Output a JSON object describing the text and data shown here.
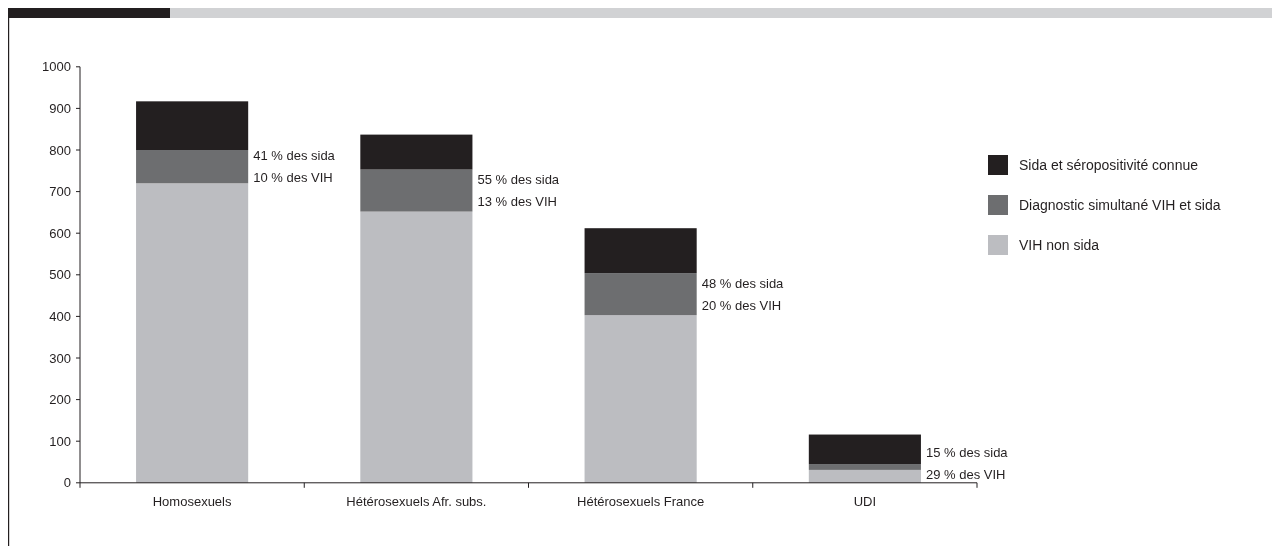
{
  "chart_data": {
    "type": "bar",
    "stacked": true,
    "categories": [
      "Homosexuels",
      "Hétérosexuels Afr. subs.",
      "Hétérosexuels France",
      "UDI"
    ],
    "series": [
      {
        "name": "VIH non sida",
        "color": "#bcbdc1",
        "values": [
          720,
          652,
          403,
          31
        ]
      },
      {
        "name": "Diagnostic simultané VIH et sida",
        "color": "#6d6e70",
        "values": [
          80,
          101,
          101,
          14
        ]
      },
      {
        "name": "Sida et séropositivité connue",
        "color": "#231f20",
        "values": [
          117,
          84,
          108,
          71
        ]
      }
    ],
    "ylim": [
      0,
      1000
    ],
    "yticks": [
      0,
      100,
      200,
      300,
      400,
      500,
      600,
      700,
      800,
      900,
      1000
    ],
    "grid": false,
    "legend": "right",
    "annotations": [
      "41 % des sida",
      "10 % des VIH",
      "55 % des sida",
      "13 % des VIH",
      "48 % des sida",
      "20 % des VIH",
      "15 % des sida",
      "29 % des VIH"
    ]
  }
}
